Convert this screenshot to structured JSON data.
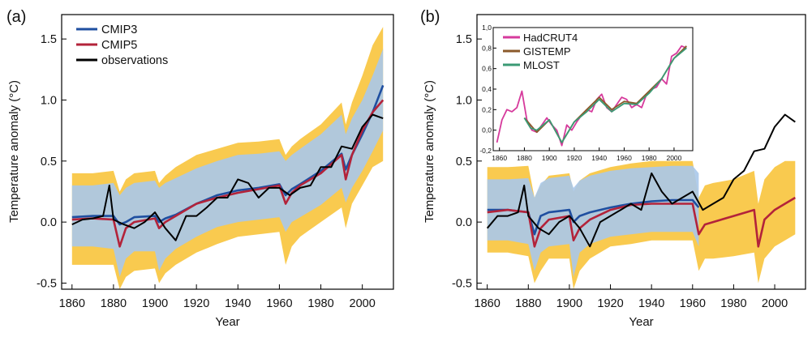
{
  "colors": {
    "cmip3": "#1f4fa0",
    "cmip3_members": "#a9c8ea",
    "cmip5": "#b3233a",
    "cmip5_members": "#f8c43c",
    "observations": "#000000",
    "hadcrut4": "#d63a9c",
    "gistemp": "#8b5a2b",
    "mlost": "#3a9a74"
  },
  "chart_data": [
    {
      "type": "line",
      "panel_label": "(a)",
      "title": "",
      "xlabel": "Year",
      "ylabel": "Temperature anomaly (°C)",
      "xlim": [
        1855,
        2015
      ],
      "ylim": [
        -0.55,
        1.7
      ],
      "xticks": [
        1860,
        1880,
        1900,
        1920,
        1940,
        1960,
        1980,
        2000
      ],
      "yticks": [
        -0.5,
        0.0,
        0.5,
        1.0,
        1.5
      ],
      "ytick_labels": [
        "-0.5",
        "0.0",
        "0.5",
        "1.0",
        "1.5"
      ],
      "grid": false,
      "legend_position": "top-left",
      "legend": [
        {
          "label": "CMIP3",
          "color_key": "cmip3"
        },
        {
          "label": "CMIP5",
          "color_key": "cmip5"
        },
        {
          "label": "observations",
          "color_key": "observations"
        }
      ],
      "series": [
        {
          "name": "CMIP3",
          "color_key": "cmip3",
          "band_color_key": "cmip3_members",
          "x": [
            1860,
            1870,
            1880,
            1883,
            1886,
            1890,
            1900,
            1902,
            1905,
            1910,
            1920,
            1930,
            1940,
            1950,
            1960,
            1963,
            1966,
            1970,
            1980,
            1990,
            1992,
            1995,
            2000,
            2005,
            2010
          ],
          "y": [
            0.04,
            0.05,
            0.05,
            -0.02,
            0.0,
            0.04,
            0.05,
            0.0,
            0.03,
            0.06,
            0.15,
            0.22,
            0.26,
            0.28,
            0.31,
            0.22,
            0.27,
            0.31,
            0.42,
            0.56,
            0.43,
            0.55,
            0.72,
            0.9,
            1.12
          ],
          "band_low": [
            -0.2,
            -0.2,
            -0.22,
            -0.45,
            -0.3,
            -0.24,
            -0.24,
            -0.4,
            -0.3,
            -0.22,
            -0.12,
            -0.04,
            0.0,
            0.02,
            0.04,
            -0.08,
            0.0,
            0.04,
            0.14,
            0.28,
            0.16,
            0.28,
            0.42,
            0.58,
            0.75
          ],
          "band_high": [
            0.3,
            0.3,
            0.32,
            0.22,
            0.28,
            0.32,
            0.34,
            0.28,
            0.32,
            0.36,
            0.44,
            0.5,
            0.55,
            0.56,
            0.58,
            0.5,
            0.55,
            0.6,
            0.72,
            0.88,
            0.72,
            0.85,
            1.0,
            1.2,
            1.42
          ]
        },
        {
          "name": "CMIP5",
          "color_key": "cmip5",
          "band_color_key": "cmip5_members",
          "x": [
            1860,
            1870,
            1880,
            1883,
            1886,
            1890,
            1900,
            1902,
            1905,
            1910,
            1920,
            1930,
            1940,
            1950,
            1960,
            1963,
            1966,
            1970,
            1980,
            1990,
            1992,
            1995,
            2000,
            2005,
            2010
          ],
          "y": [
            0.02,
            0.03,
            0.02,
            -0.2,
            -0.05,
            0.0,
            0.03,
            -0.05,
            0.0,
            0.05,
            0.15,
            0.2,
            0.24,
            0.27,
            0.3,
            0.15,
            0.24,
            0.3,
            0.4,
            0.55,
            0.35,
            0.55,
            0.75,
            0.9,
            1.0
          ],
          "band_low": [
            -0.35,
            -0.35,
            -0.35,
            -0.55,
            -0.45,
            -0.4,
            -0.38,
            -0.5,
            -0.42,
            -0.35,
            -0.25,
            -0.18,
            -0.12,
            -0.1,
            -0.08,
            -0.35,
            -0.2,
            -0.12,
            0.0,
            0.12,
            -0.05,
            0.15,
            0.3,
            0.45,
            0.5
          ],
          "band_high": [
            0.4,
            0.4,
            0.42,
            0.25,
            0.35,
            0.4,
            0.42,
            0.32,
            0.38,
            0.45,
            0.55,
            0.6,
            0.65,
            0.66,
            0.68,
            0.55,
            0.62,
            0.68,
            0.8,
            0.98,
            0.8,
            0.98,
            1.2,
            1.45,
            1.6
          ]
        },
        {
          "name": "observations",
          "color_key": "observations",
          "x": [
            1860,
            1865,
            1870,
            1875,
            1878,
            1880,
            1885,
            1890,
            1895,
            1900,
            1905,
            1910,
            1915,
            1920,
            1925,
            1930,
            1935,
            1940,
            1945,
            1950,
            1955,
            1960,
            1965,
            1970,
            1975,
            1980,
            1985,
            1990,
            1995,
            2000,
            2005,
            2010
          ],
          "y": [
            -0.02,
            0.02,
            0.03,
            0.05,
            0.3,
            0.02,
            -0.02,
            -0.05,
            0.0,
            0.08,
            -0.05,
            -0.15,
            0.05,
            0.05,
            0.12,
            0.2,
            0.2,
            0.35,
            0.32,
            0.2,
            0.28,
            0.28,
            0.22,
            0.28,
            0.3,
            0.45,
            0.45,
            0.62,
            0.6,
            0.78,
            0.88,
            0.85
          ]
        }
      ]
    },
    {
      "type": "line",
      "panel_label": "(b)",
      "title": "",
      "xlabel": "Year",
      "ylabel": "Temperature anomaly (°C)",
      "xlim": [
        1855,
        2015
      ],
      "ylim": [
        -0.55,
        1.7
      ],
      "xticks": [
        1860,
        1880,
        1900,
        1920,
        1940,
        1960,
        1980,
        2000
      ],
      "yticks": [
        -0.5,
        0.0,
        0.5,
        1.0,
        1.5
      ],
      "ytick_labels": [
        "-0.5",
        "0.0",
        "0.5",
        "1.0",
        "1.5"
      ],
      "grid": false,
      "series": [
        {
          "name": "CMIP3",
          "color_key": "cmip3",
          "band_color_key": "cmip3_members",
          "x": [
            1860,
            1870,
            1880,
            1883,
            1886,
            1890,
            1900,
            1902,
            1905,
            1910,
            1920,
            1930,
            1940,
            1950,
            1960,
            1963
          ],
          "y": [
            0.1,
            0.1,
            0.08,
            -0.1,
            0.05,
            0.08,
            0.1,
            0.0,
            0.05,
            0.08,
            0.12,
            0.15,
            0.17,
            0.18,
            0.18,
            0.12
          ],
          "band_low": [
            -0.15,
            -0.15,
            -0.18,
            -0.4,
            -0.25,
            -0.2,
            -0.18,
            -0.45,
            -0.25,
            -0.18,
            -0.12,
            -0.1,
            -0.08,
            -0.08,
            -0.08,
            -0.2
          ],
          "band_high": [
            0.35,
            0.35,
            0.36,
            0.2,
            0.32,
            0.36,
            0.38,
            0.28,
            0.34,
            0.38,
            0.42,
            0.44,
            0.45,
            0.46,
            0.46,
            0.4
          ]
        },
        {
          "name": "CMIP5",
          "color_key": "cmip5",
          "band_color_key": "cmip5_members",
          "x": [
            1860,
            1870,
            1880,
            1883,
            1886,
            1890,
            1900,
            1902,
            1905,
            1910,
            1920,
            1930,
            1940,
            1950,
            1960,
            1963,
            1966,
            1970,
            1980,
            1990,
            1992,
            1995,
            2000,
            2005,
            2010
          ],
          "y": [
            0.08,
            0.1,
            0.08,
            -0.2,
            -0.05,
            0.02,
            0.05,
            -0.15,
            -0.05,
            0.02,
            0.1,
            0.14,
            0.15,
            0.15,
            0.15,
            -0.1,
            -0.02,
            0.0,
            0.05,
            0.1,
            -0.2,
            0.02,
            0.1,
            0.15,
            0.2
          ],
          "band_low": [
            -0.25,
            -0.25,
            -0.28,
            -0.5,
            -0.4,
            -0.3,
            -0.3,
            -0.55,
            -0.4,
            -0.3,
            -0.2,
            -0.18,
            -0.15,
            -0.15,
            -0.15,
            -0.4,
            -0.3,
            -0.3,
            -0.28,
            -0.25,
            -0.5,
            -0.3,
            -0.2,
            -0.15,
            -0.1
          ],
          "band_high": [
            0.45,
            0.45,
            0.46,
            0.2,
            0.3,
            0.38,
            0.4,
            0.25,
            0.34,
            0.4,
            0.45,
            0.48,
            0.5,
            0.5,
            0.5,
            0.2,
            0.3,
            0.32,
            0.35,
            0.42,
            0.15,
            0.35,
            0.45,
            0.5,
            0.5
          ]
        },
        {
          "name": "observations",
          "color_key": "observations",
          "x": [
            1860,
            1865,
            1870,
            1875,
            1878,
            1880,
            1885,
            1890,
            1895,
            1900,
            1905,
            1910,
            1915,
            1920,
            1925,
            1930,
            1935,
            1940,
            1945,
            1950,
            1955,
            1960,
            1965,
            1970,
            1975,
            1980,
            1985,
            1990,
            1995,
            2000,
            2005,
            2010
          ],
          "y": [
            -0.05,
            0.05,
            0.05,
            0.08,
            0.3,
            0.05,
            -0.05,
            -0.1,
            0.0,
            0.05,
            -0.05,
            -0.2,
            0.0,
            0.05,
            0.1,
            0.15,
            0.1,
            0.4,
            0.25,
            0.15,
            0.2,
            0.25,
            0.1,
            0.15,
            0.2,
            0.35,
            0.42,
            0.58,
            0.6,
            0.78,
            0.88,
            0.82
          ]
        }
      ],
      "inset": {
        "type": "line",
        "xlim": [
          1855,
          2015
        ],
        "ylim": [
          -0.2,
          1.0
        ],
        "xticks": [
          1860,
          1880,
          1900,
          1920,
          1940,
          1960,
          1980,
          2000
        ],
        "yticks": [
          -0.2,
          0.0,
          0.2,
          0.4,
          0.6,
          0.8,
          1.0
        ],
        "ytick_labels": [
          "-0,2",
          "0,0",
          "0,2",
          "0,4",
          "0,6",
          "0,8",
          "1,0"
        ],
        "legend_position": "top-left",
        "legend": [
          {
            "label": "HadCRUT4",
            "color_key": "hadcrut4"
          },
          {
            "label": "GISTEMP",
            "color_key": "gistemp"
          },
          {
            "label": "MLOST",
            "color_key": "mlost"
          }
        ],
        "series": [
          {
            "name": "HadCRUT4",
            "color_key": "hadcrut4",
            "x": [
              1858,
              1862,
              1866,
              1870,
              1874,
              1878,
              1882,
              1886,
              1890,
              1894,
              1898,
              1902,
              1906,
              1910,
              1914,
              1918,
              1922,
              1926,
              1930,
              1934,
              1938,
              1942,
              1946,
              1950,
              1954,
              1958,
              1962,
              1966,
              1970,
              1974,
              1978,
              1982,
              1986,
              1990,
              1994,
              1998,
              2002,
              2006,
              2010
            ],
            "y": [
              -0.12,
              0.1,
              0.2,
              0.18,
              0.22,
              0.38,
              0.1,
              0.0,
              -0.02,
              0.05,
              0.12,
              0.05,
              0.0,
              -0.15,
              0.05,
              0.0,
              0.08,
              0.15,
              0.2,
              0.18,
              0.3,
              0.35,
              0.22,
              0.18,
              0.25,
              0.32,
              0.3,
              0.22,
              0.25,
              0.22,
              0.35,
              0.4,
              0.42,
              0.5,
              0.45,
              0.72,
              0.75,
              0.82,
              0.8
            ]
          },
          {
            "name": "GISTEMP",
            "color_key": "gistemp",
            "x": [
              1880,
              1890,
              1900,
              1910,
              1920,
              1930,
              1940,
              1950,
              1960,
              1970,
              1980,
              1990,
              2000,
              2010
            ],
            "y": [
              0.12,
              -0.02,
              0.1,
              -0.12,
              0.08,
              0.2,
              0.32,
              0.2,
              0.28,
              0.26,
              0.38,
              0.5,
              0.7,
              0.82
            ]
          },
          {
            "name": "MLOST",
            "color_key": "mlost",
            "x": [
              1880,
              1885,
              1890,
              1900,
              1910,
              1920,
              1930,
              1940,
              1950,
              1960,
              1970,
              1980,
              1990,
              2000,
              2010
            ],
            "y": [
              0.12,
              0.02,
              0.0,
              0.1,
              -0.12,
              0.08,
              0.18,
              0.3,
              0.18,
              0.26,
              0.25,
              0.36,
              0.5,
              0.7,
              0.8
            ]
          }
        ]
      }
    }
  ]
}
